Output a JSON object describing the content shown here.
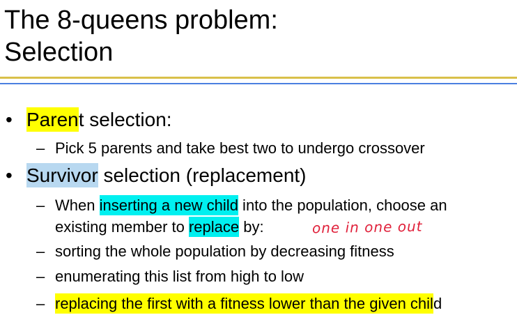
{
  "title": {
    "line1": "The 8-queens problem:",
    "line2": "Selection"
  },
  "colors": {
    "highlight_yellow": "#ffff00",
    "highlight_cyan": "#00f0f0",
    "highlight_light_blue": "#b8d8f0",
    "rule_gold": "#d9c04a",
    "rule_blue": "#4a7fe0",
    "annotation_red": "#e0203a"
  },
  "bullets": [
    {
      "marker": "•",
      "highlighted": "Paren",
      "rest": "t selection:",
      "subitems": [
        {
          "marker": "–",
          "text": "Pick 5 parents and take best two to undergo crossover"
        }
      ]
    },
    {
      "marker": "•",
      "highlighted": "Survivor",
      "rest": " selection (replacement)",
      "subitems": [
        {
          "marker": "–",
          "part1": "When ",
          "hl1": "inserting a new child",
          "part2": " into the population, choose an",
          "cont_part1": "existing member to ",
          "hl2": "replace",
          "cont_part2": " by:"
        },
        {
          "marker": "–",
          "text": "sorting the whole population by decreasing fitness"
        },
        {
          "marker": "–",
          "text": "enumerating this list from high to low"
        },
        {
          "marker": "–",
          "hl": "replacing the first with a fitness lower than the given chil",
          "rest": "d"
        }
      ]
    }
  ],
  "handwritten_note": "one in one out"
}
